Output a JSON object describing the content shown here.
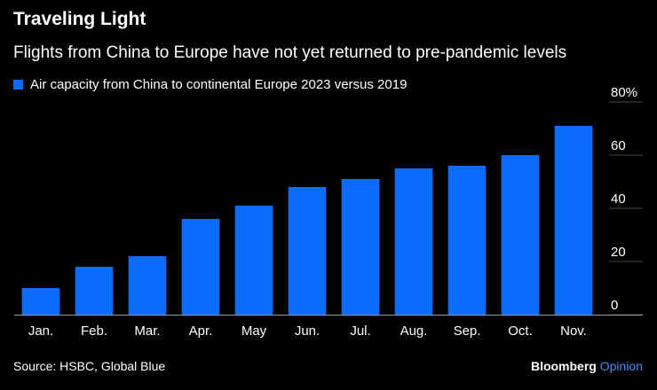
{
  "header": {
    "title": "Traveling Light",
    "subtitle": "Flights from China to Europe have not yet returned to pre-pandemic levels"
  },
  "footer": {
    "source": "Source: HSBC, Global Blue",
    "brand_name": "Bloomberg",
    "brand_suffix": "Opinion"
  },
  "colors": {
    "bar": "#0a6cff",
    "axis_line": "#9a9a9a",
    "gridline": "#444444",
    "text": "#ffffff",
    "brand_accent": "#4a8cff"
  },
  "chart_data": {
    "type": "bar",
    "title": "Traveling Light",
    "subtitle": "Flights from China to Europe have not yet returned to pre-pandemic levels",
    "categories": [
      "Jan.",
      "Feb.",
      "Mar.",
      "Apr.",
      "May",
      "Jun.",
      "Jul.",
      "Aug.",
      "Sep.",
      "Oct.",
      "Nov."
    ],
    "series": [
      {
        "name": "Air capacity from China to continental Europe 2023 versus 2019",
        "values": [
          10,
          18,
          22,
          36,
          41,
          48,
          51,
          55,
          56,
          60,
          71
        ]
      }
    ],
    "yticks": [
      {
        "value": 0,
        "label": "0"
      },
      {
        "value": 20,
        "label": "20"
      },
      {
        "value": 40,
        "label": "40"
      },
      {
        "value": 60,
        "label": "60"
      },
      {
        "value": 80,
        "label": "80%"
      }
    ],
    "ylim": [
      0,
      80
    ],
    "xlabel": "",
    "ylabel": "",
    "legend": "top-left",
    "grid": false
  }
}
